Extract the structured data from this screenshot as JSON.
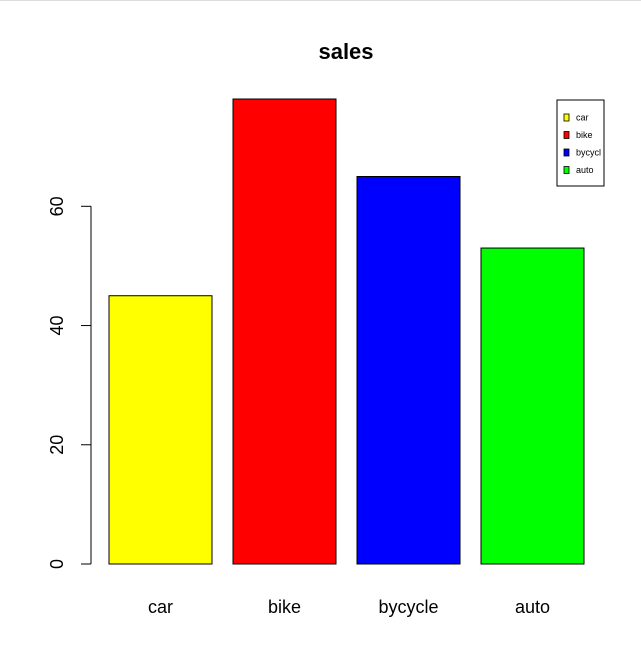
{
  "chart_data": {
    "type": "bar",
    "title": "sales",
    "xlabel": "",
    "ylabel": "",
    "categories": [
      "car",
      "bike",
      "bycycle",
      "auto"
    ],
    "values": [
      45,
      78,
      65,
      53
    ],
    "colors": [
      "#ffff00",
      "#ff0000",
      "#0000ff",
      "#00ff00"
    ],
    "ylim": [
      0,
      78
    ],
    "yticks": [
      0,
      20,
      40,
      60
    ],
    "grid": false,
    "legend": {
      "placement": "top-right",
      "entries": [
        {
          "label": "car",
          "color": "#ffff00"
        },
        {
          "label": "bike",
          "color": "#ff0000"
        },
        {
          "label": "bycycl",
          "color": "#0000ff"
        },
        {
          "label": "auto",
          "color": "#00ff00"
        }
      ]
    }
  }
}
